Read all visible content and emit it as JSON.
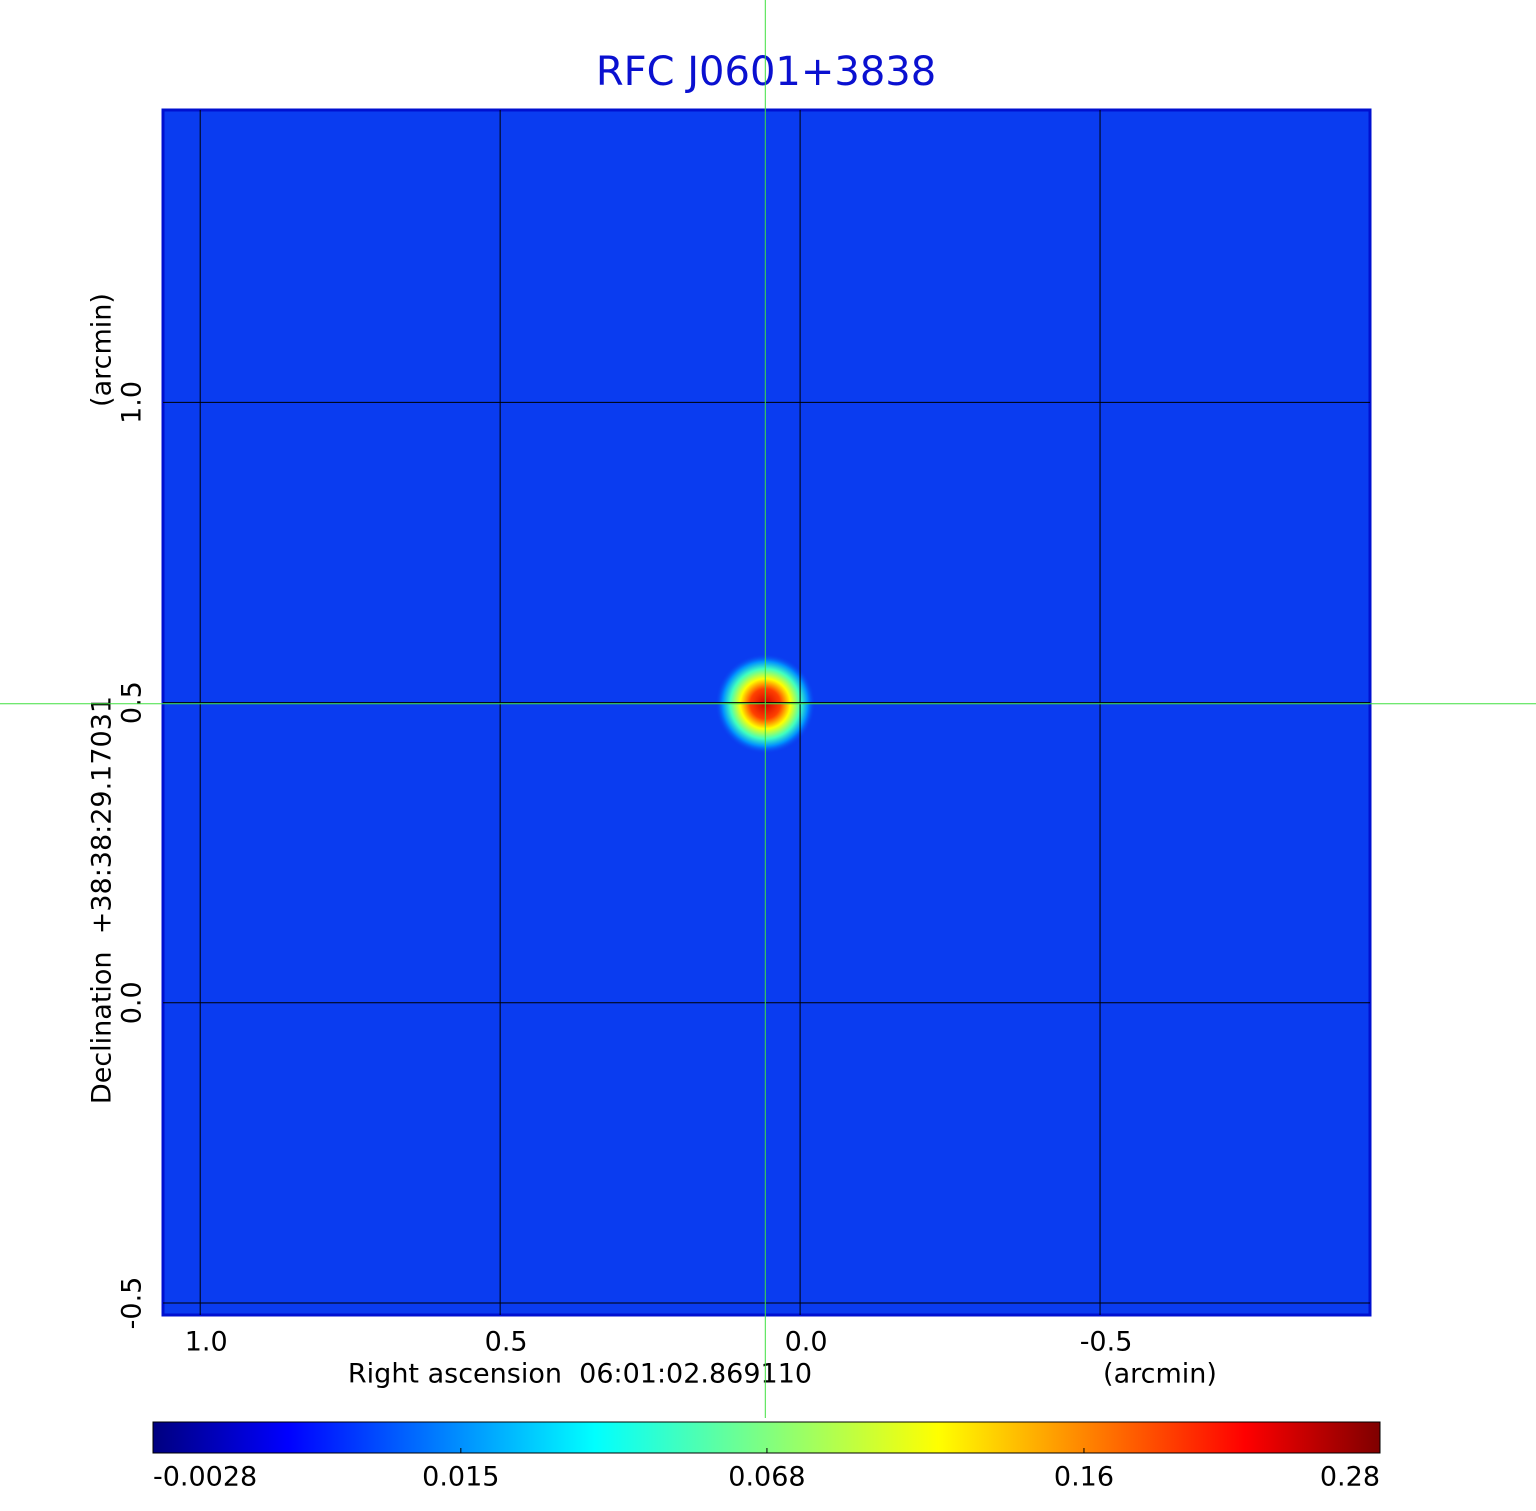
{
  "chart_data": {
    "type": "image",
    "title": "RFC J0601+3838",
    "xlabel": "Right ascension  06:01:02.869110",
    "xunit": "(arcmin)",
    "ylabel": "Declination  +38:38:29.17031",
    "yunit": "(arcmin)",
    "xlim": [
      1.062,
      -0.95
    ],
    "ylim": [
      -0.52,
      1.487
    ],
    "xticks": [
      {
        "value": 1,
        "label": "1.0"
      },
      {
        "value": 0.5,
        "label": "0.5"
      },
      {
        "value": 0,
        "label": "0.0"
      },
      {
        "value": -0.5,
        "label": "-0.5"
      }
    ],
    "yticks": [
      {
        "value": -0.5,
        "label": "-0.5"
      },
      {
        "value": 0,
        "label": "0.0"
      },
      {
        "value": 0.5,
        "label": "0.5"
      },
      {
        "value": 1,
        "label": "1.0"
      }
    ],
    "grid": true,
    "source": {
      "x": 0.058,
      "y": 0.498,
      "peak": 0.28
    },
    "colorbar": {
      "lim": [
        -0.0028,
        0.28
      ],
      "scale": "sqrt",
      "ticks": [
        -0.0028,
        0.015,
        0.068,
        0.16,
        0.28
      ]
    }
  }
}
